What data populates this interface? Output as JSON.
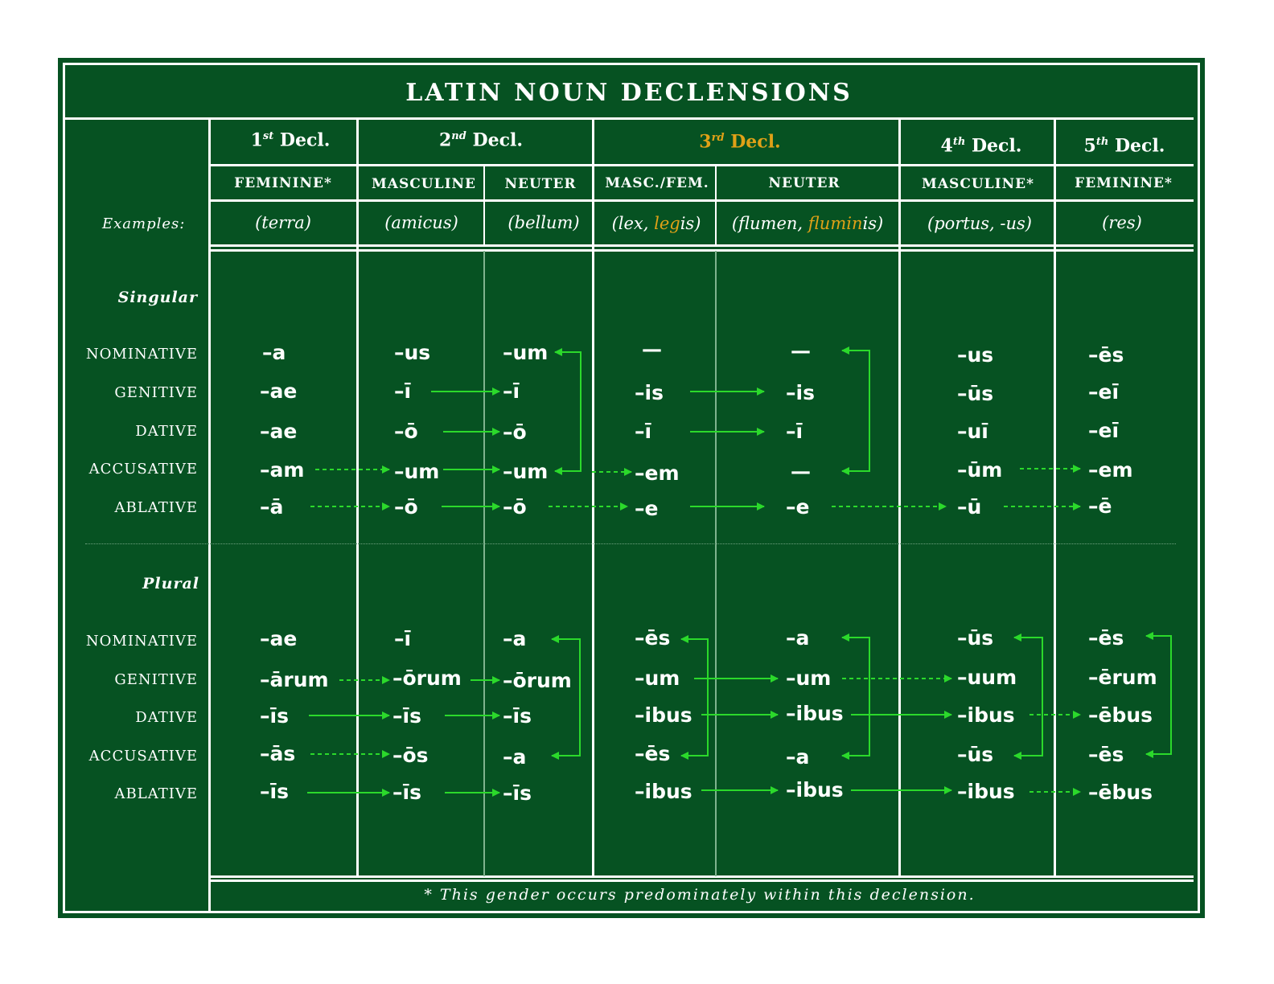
{
  "title": "LATIN NOUN DECLENSIONS",
  "declensions": [
    {
      "num": "1",
      "suffix": "st",
      "label": "Decl."
    },
    {
      "num": "2",
      "suffix": "nd",
      "label": "Decl."
    },
    {
      "num": "3",
      "suffix": "rd",
      "label": "Decl."
    },
    {
      "num": "4",
      "suffix": "th",
      "label": "Decl."
    },
    {
      "num": "5",
      "suffix": "th",
      "label": "Decl."
    }
  ],
  "genders": [
    "FEMININE*",
    "MASCULINE",
    "NEUTER",
    "MASC./FEM.",
    "NEUTER",
    "MASCULINE*",
    "FEMININE*"
  ],
  "examples_label": "Examples:",
  "examples": {
    "terra": "(terra)",
    "amicus": "(amicus)",
    "bellum": "(bellum)",
    "lex_a": "(lex, ",
    "lex_b": "leg",
    "lex_c": "is)",
    "flumen_a": "(flumen, ",
    "flumen_b": "flumin",
    "flumen_c": "is)",
    "portus": "(portus, -us)",
    "res": "(res)"
  },
  "numbers": {
    "singular": "Singular",
    "plural": "Plural"
  },
  "cases": [
    "NOMINATIVE",
    "GENITIVE",
    "DATIVE",
    "ACCUSATIVE",
    "ABLATIVE"
  ],
  "singular": [
    [
      "–a",
      "–us",
      "–um",
      "—",
      "—",
      "–us",
      "–ēs"
    ],
    [
      "–ae",
      "–ī",
      "–ī",
      "–is",
      "–is",
      "–ūs",
      "–eī"
    ],
    [
      "–ae",
      "–ō",
      "–ō",
      "–ī",
      "–ī",
      "–uī",
      "–eī"
    ],
    [
      "–am",
      "–um",
      "–um",
      "–em",
      "—",
      "–ūm",
      "–em"
    ],
    [
      "–ā",
      "–ō",
      "–ō",
      "–e",
      "–e",
      "–ū",
      "–ē"
    ]
  ],
  "plural": [
    [
      "–ae",
      "–ī",
      "–a",
      "–ēs",
      "–a",
      "–ūs",
      "–ēs"
    ],
    [
      "–ārum",
      "–ōrum",
      "–ōrum",
      "–um",
      "–um",
      "–uum",
      "–ērum"
    ],
    [
      "–īs",
      "–īs",
      "–īs",
      "–ibus",
      "–ibus",
      "–ibus",
      "–ēbus"
    ],
    [
      "–ās",
      "–ōs",
      "–a",
      "–ēs",
      "–a",
      "–ūs",
      "–ēs"
    ],
    [
      "–īs",
      "–īs",
      "–īs",
      "–ibus",
      "–ibus",
      "–ibus",
      "–ēbus"
    ]
  ],
  "footnote": "* This gender occurs predominately within this declension.",
  "colors": {
    "board": "#065222",
    "arrow": "#2bd92b",
    "highlight": "#e0a117",
    "line": "#ffffff"
  }
}
